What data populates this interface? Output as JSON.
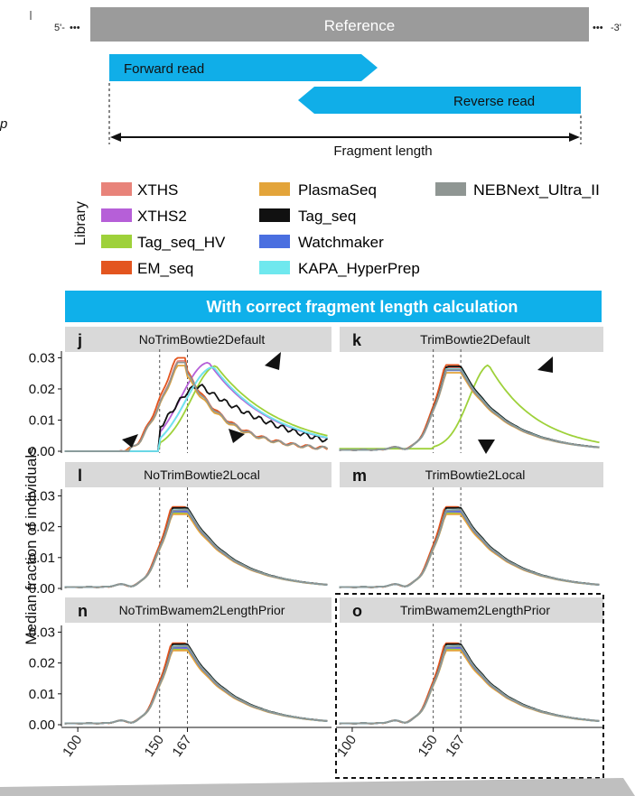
{
  "schematic": {
    "reference": "Reference",
    "five_prime": "5'-",
    "three_prime": "-3'",
    "forward_read": "Forward read",
    "reverse_read": "Reverse read",
    "fragment_length": "Fragment length",
    "left_fragment_text": "p"
  },
  "legend": {
    "title": "Library",
    "entries": [
      {
        "name": "XTHS",
        "color": "#e8837a"
      },
      {
        "name": "XTHS2",
        "color": "#b65fd8"
      },
      {
        "name": "Tag_seq_HV",
        "color": "#9ed13a"
      },
      {
        "name": "EM_seq",
        "color": "#e3551f"
      },
      {
        "name": "PlasmaSeq",
        "color": "#e3a43a"
      },
      {
        "name": "Tag_seq",
        "color": "#111111"
      },
      {
        "name": "Watchmaker",
        "color": "#4a6fe0"
      },
      {
        "name": "KAPA_HyperPrep",
        "color": "#6fe8ee"
      },
      {
        "name": "NEBNext_Ultra_II",
        "color": "#8f9693"
      }
    ]
  },
  "banner": {
    "text": "With correct fragment length calculation",
    "color": "#0fb0ea"
  },
  "y_axis_label": "Median fraction of individuals",
  "chart_data": {
    "type": "line",
    "xlabel": "",
    "ylabel": "Median fraction of individuals",
    "xlim": [
      90,
      255
    ],
    "ylim": [
      0,
      0.031
    ],
    "x_ticks": [
      "100",
      "150",
      "167"
    ],
    "x_tick_values": [
      100,
      150,
      167
    ],
    "y_ticks": [
      "0.00",
      "0.01",
      "0.02",
      "0.03"
    ],
    "y_tick_values": [
      0,
      0.01,
      0.02,
      0.03
    ],
    "reference_lines": [
      150,
      167
    ],
    "panels": [
      {
        "letter": "j",
        "title": "NoTrimBowtie2Default",
        "mode": "notrim_default"
      },
      {
        "letter": "k",
        "title": "TrimBowtie2Default",
        "mode": "trim_default"
      },
      {
        "letter": "l",
        "title": "NoTrimBowtie2Local",
        "mode": "normal"
      },
      {
        "letter": "m",
        "title": "TrimBowtie2Local",
        "mode": "normal"
      },
      {
        "letter": "n",
        "title": "NoTrimBwamem2LengthPrior",
        "mode": "normal"
      },
      {
        "letter": "o",
        "title": "TrimBwamem2LengthPrior",
        "mode": "normal"
      }
    ],
    "series": [
      {
        "name": "XTHS",
        "peak_x": 167,
        "peak_y": 0.0255
      },
      {
        "name": "XTHS2",
        "peak_x": 167,
        "peak_y": 0.025
      },
      {
        "name": "Tag_seq_HV",
        "peak_x": 167,
        "peak_y": 0.0245
      },
      {
        "name": "EM_seq",
        "peak_x": 166,
        "peak_y": 0.0265
      },
      {
        "name": "PlasmaSeq",
        "peak_x": 167,
        "peak_y": 0.024
      },
      {
        "name": "Tag_seq",
        "peak_x": 167,
        "peak_y": 0.026
      },
      {
        "name": "Watchmaker",
        "peak_x": 167,
        "peak_y": 0.0248
      },
      {
        "name": "KAPA_HyperPrep",
        "peak_x": 167,
        "peak_y": 0.0252
      },
      {
        "name": "NEBNext_Ultra_II",
        "peak_x": 167,
        "peak_y": 0.025
      }
    ]
  }
}
